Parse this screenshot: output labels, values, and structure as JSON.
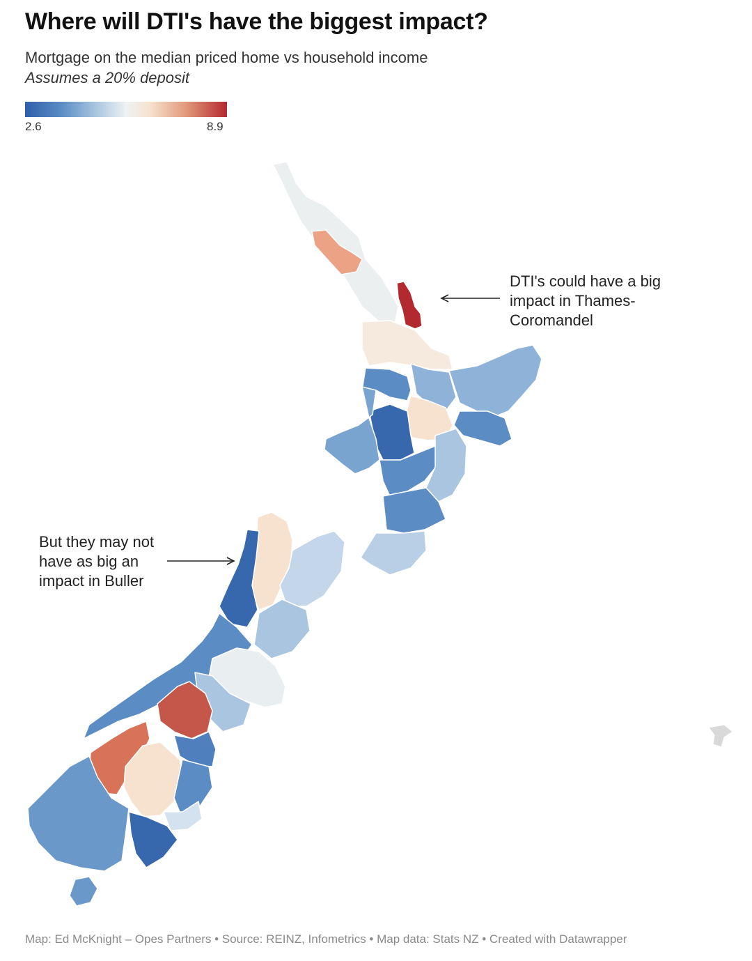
{
  "title": "Where will DTI's have the biggest impact?",
  "subtitle": "Mortgage on the median priced home vs household income",
  "note": "Assumes a 20% deposit",
  "legend": {
    "min_label": "2.6",
    "max_label": "8.9",
    "min_value": 2.6,
    "max_value": 8.9,
    "colors": [
      "#2f5fa8",
      "#5b8cc4",
      "#a9c5e0",
      "#eef2f3",
      "#f6e2cf",
      "#e2977a",
      "#b22a30"
    ]
  },
  "annotations": {
    "top": "DTI's could have a big\nimpact in Thames-\nCoromandel",
    "left": "But they may not\nhave as big an\nimpact in Buller"
  },
  "footer": "Map: Ed McKnight – Opes Partners • Source: REINZ, Infometrics • Map data: Stats NZ • Created with Datawrapper",
  "regions": [
    {
      "region": "Far North",
      "color": "#eceff0"
    },
    {
      "region": "Kaipara",
      "color": "#eba285"
    },
    {
      "region": "Thames-Coromandel",
      "color": "#b22a30"
    },
    {
      "region": "Waikato area",
      "color": "#f6e9dd"
    },
    {
      "region": "Taupo",
      "color": "#f6e2cf"
    },
    {
      "region": "Ruapehu",
      "color": "#3767ad"
    },
    {
      "region": "Taranaki",
      "color": "#7aa4d0"
    },
    {
      "region": "Manawatu",
      "color": "#5b8cc4"
    },
    {
      "region": "Hawke's Bay",
      "color": "#8fb2d8"
    },
    {
      "region": "Wellington",
      "color": "#b8cfe6"
    },
    {
      "region": "Tasman",
      "color": "#f6e2cf"
    },
    {
      "region": "Buller",
      "color": "#3767ad"
    },
    {
      "region": "Marlborough",
      "color": "#c3d6ea"
    },
    {
      "region": "Canterbury",
      "color": "#a9c5e0"
    },
    {
      "region": "Christchurch",
      "color": "#e9eef0"
    },
    {
      "region": "Westland",
      "color": "#5b8cc4"
    },
    {
      "region": "Mackenzie",
      "color": "#c4574a"
    },
    {
      "region": "Queenstown-Lakes",
      "color": "#d8735a"
    },
    {
      "region": "Central Otago",
      "color": "#f6e2cf"
    },
    {
      "region": "Southland",
      "color": "#6a98c9"
    },
    {
      "region": "Gore",
      "color": "#3767ad"
    },
    {
      "region": "Waitaki",
      "color": "#4f7fbd"
    },
    {
      "region": "Dunedin",
      "color": "#d4e2ef"
    }
  ]
}
